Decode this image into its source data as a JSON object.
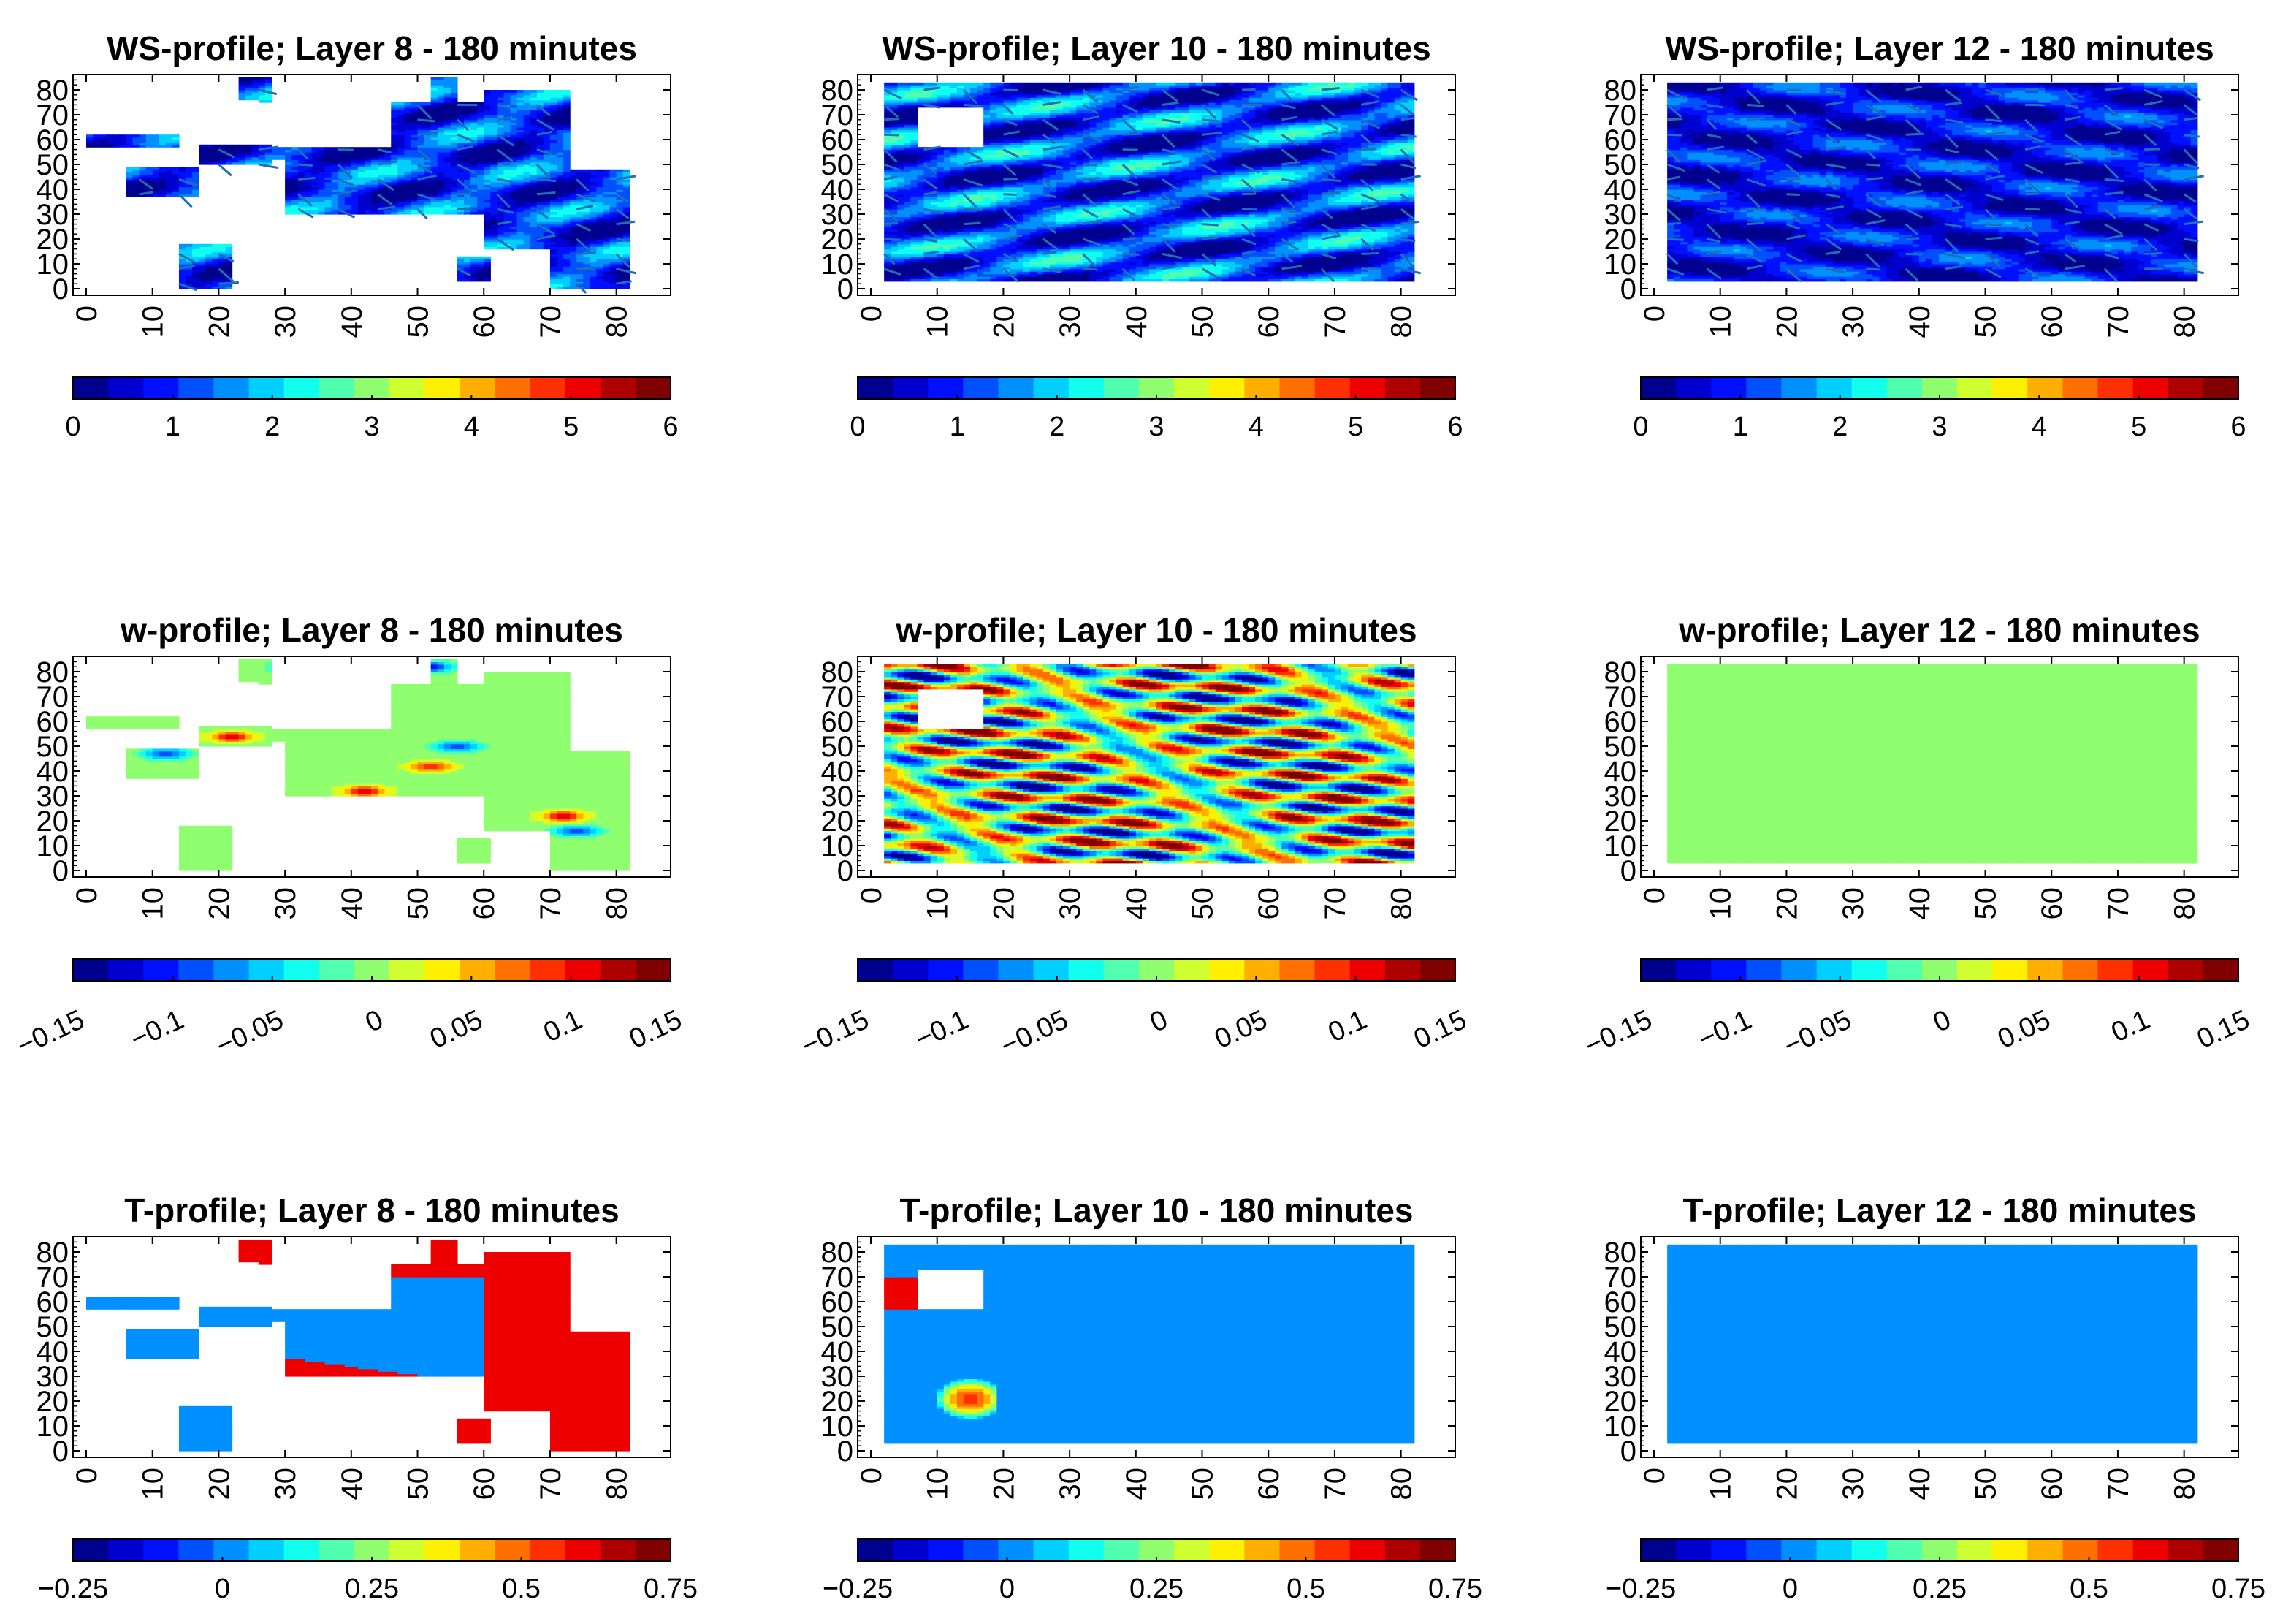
{
  "colors": {
    "jet": [
      "#00008f",
      "#0000cf",
      "#0010ff",
      "#0050ff",
      "#0090ff",
      "#00cfff",
      "#10ffef",
      "#50ffaf",
      "#90ff6f",
      "#cfff30",
      "#ffef00",
      "#ffaf00",
      "#ff7000",
      "#ff3000",
      "#ef0000",
      "#af0000",
      "#800000"
    ],
    "white_cell": "#ffffff",
    "vector_arrows": "#1f6fb4"
  },
  "axis_ticks": [
    "0",
    "10",
    "20",
    "30",
    "40",
    "50",
    "60",
    "70",
    "80"
  ],
  "colorbars": {
    "ws": {
      "range": [
        0,
        6
      ],
      "ticks": [
        "0",
        "1",
        "2",
        "3",
        "4",
        "5",
        "6"
      ],
      "rotated": false
    },
    "w": {
      "range": [
        -0.15,
        0.15
      ],
      "ticks": [
        "−0.15",
        "−0.1",
        "−0.05",
        "0",
        "0.05",
        "0.1",
        "0.15"
      ],
      "rotated": true
    },
    "t": {
      "range": [
        -0.25,
        0.75
      ],
      "ticks": [
        "−0.25",
        "0",
        "0.25",
        "0.5",
        "0.75"
      ],
      "rotated": false
    }
  },
  "chart_data": [
    {
      "type": "heatmap",
      "variable": "ws",
      "title": "WS-profile; Layer 8 - 180 minutes",
      "xlim": [
        0,
        85
      ],
      "ylim": [
        0,
        85
      ],
      "field": "ws-sparse",
      "mask": "L8",
      "arrows": true
    },
    {
      "type": "heatmap",
      "variable": "ws",
      "title": "WS-profile; Layer 10 - 180 minutes",
      "xlim": [
        0,
        85
      ],
      "ylim": [
        0,
        85
      ],
      "field": "ws-noise",
      "mask": "L10",
      "arrows": true
    },
    {
      "type": "heatmap",
      "variable": "ws",
      "title": "WS-profile; Layer 12 - 180 minutes",
      "xlim": [
        0,
        85
      ],
      "ylim": [
        0,
        85
      ],
      "field": "ws-low",
      "mask": "L12",
      "arrows": true
    },
    {
      "type": "heatmap",
      "variable": "w",
      "title": "w-profile; Layer 8 - 180 minutes",
      "xlim": [
        0,
        85
      ],
      "ylim": [
        0,
        85
      ],
      "field": "w-blobs",
      "mask": "L8",
      "arrows": false
    },
    {
      "type": "heatmap",
      "variable": "w",
      "title": "w-profile; Layer 10 - 180 minutes",
      "xlim": [
        0,
        85
      ],
      "ylim": [
        0,
        85
      ],
      "field": "w-bands",
      "mask": "L10",
      "arrows": false
    },
    {
      "type": "heatmap",
      "variable": "w",
      "title": "w-profile; Layer 12 - 180 minutes",
      "xlim": [
        0,
        85
      ],
      "ylim": [
        0,
        85
      ],
      "field": "const",
      "value": 0.0,
      "mask": "L12",
      "arrows": false
    },
    {
      "type": "heatmap",
      "variable": "t",
      "title": "T-profile; Layer 8 - 180 minutes",
      "xlim": [
        0,
        85
      ],
      "ylim": [
        0,
        85
      ],
      "field": "t-layer8",
      "mask": "L8",
      "arrows": false
    },
    {
      "type": "heatmap",
      "variable": "t",
      "title": "T-profile; Layer 10 - 180 minutes",
      "xlim": [
        0,
        85
      ],
      "ylim": [
        0,
        85
      ],
      "field": "t-layer10",
      "mask": "L10",
      "arrows": false
    },
    {
      "type": "heatmap",
      "variable": "t",
      "title": "T-profile; Layer 12 - 180 minutes",
      "xlim": [
        0,
        85
      ],
      "ylim": [
        0,
        85
      ],
      "field": "const",
      "value": 0.0,
      "mask": "L12",
      "arrows": false
    }
  ]
}
